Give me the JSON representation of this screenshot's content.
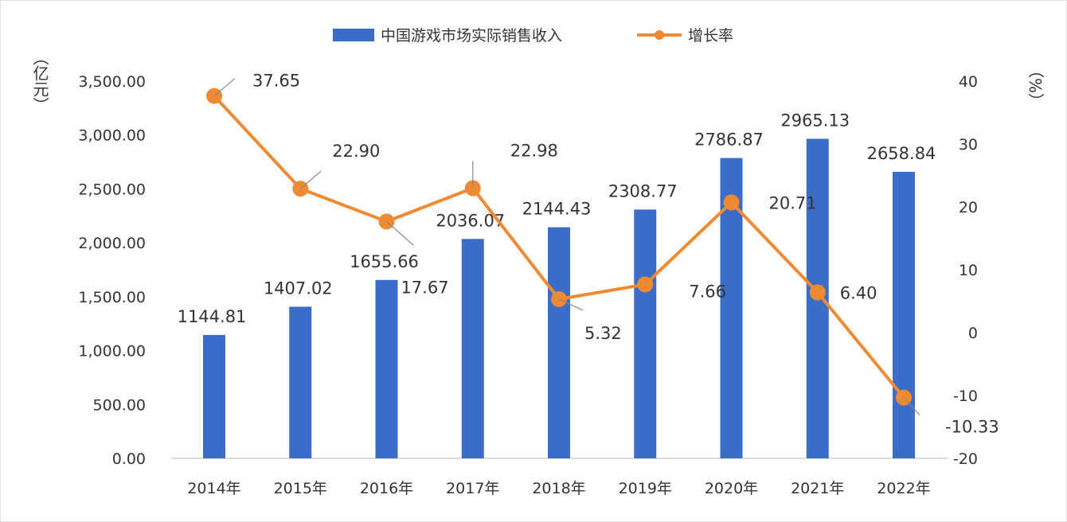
{
  "chart_data": {
    "type": "bar+line",
    "categories": [
      "2014年",
      "2015年",
      "2016年",
      "2017年",
      "2018年",
      "2019年",
      "2020年",
      "2021年",
      "2022年"
    ],
    "series": [
      {
        "name": "中国游戏市场实际销售收入",
        "type": "bar",
        "axis": "left",
        "color": "#3b6cc7",
        "values": [
          1144.81,
          1407.02,
          1655.66,
          2036.07,
          2144.43,
          2308.77,
          2786.87,
          2965.13,
          2658.84
        ],
        "labels": [
          "1144.81",
          "1407.02",
          "1655.66",
          "2036.07",
          "2144.43",
          "2308.77",
          "2786.87",
          "2965.13",
          "2658.84"
        ]
      },
      {
        "name": "增长率",
        "type": "line",
        "axis": "right",
        "color": "#ef8a33",
        "values": [
          37.65,
          22.9,
          17.67,
          22.98,
          5.32,
          7.66,
          20.71,
          6.4,
          -10.33
        ],
        "labels": [
          "37.65",
          "22.90",
          "17.67",
          "22.98",
          "5.32",
          "7.66",
          "20.71",
          "6.40",
          "-10.33"
        ]
      }
    ],
    "ylabel_left": "（亿元）",
    "ylabel_right": "（%）",
    "ylim_left": [
      0,
      3500
    ],
    "ylim_right": [
      -20,
      40
    ],
    "yticks_left": [
      "0.00",
      "500.00",
      "1,000.00",
      "1,500.00",
      "2,000.00",
      "2,500.00",
      "3,000.00",
      "3,500.00"
    ],
    "yticks_right": [
      "-20",
      "-10",
      "0",
      "10",
      "20",
      "30",
      "40"
    ],
    "grid": false,
    "legend": "top-center"
  }
}
